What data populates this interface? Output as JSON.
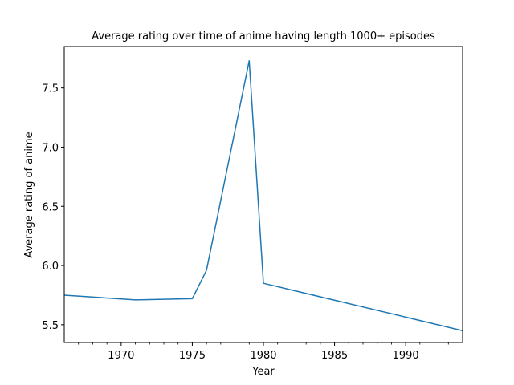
{
  "chart_data": {
    "type": "line",
    "title": "Average rating over time of anime having length 1000+ episodes",
    "xlabel": "Year",
    "ylabel": "Average rating of anime",
    "xlim": [
      1966,
      1994
    ],
    "ylim": [
      5.35,
      7.85
    ],
    "xticks": [
      1970,
      1975,
      1980,
      1985,
      1990
    ],
    "xtick_labels": [
      "1970",
      "1975",
      "1980",
      "1985",
      "1990"
    ],
    "x_minor_ticks": [
      1967,
      1968,
      1969,
      1971,
      1972,
      1973,
      1974,
      1976,
      1977,
      1978,
      1979,
      1981,
      1982,
      1983,
      1984,
      1986,
      1987,
      1988,
      1989,
      1991,
      1992,
      1993
    ],
    "yticks": [
      5.5,
      6.0,
      6.5,
      7.0,
      7.5
    ],
    "ytick_labels": [
      "5.5",
      "6.0",
      "6.5",
      "7.0",
      "7.5"
    ],
    "grid": false,
    "series": [
      {
        "name": "Average rating",
        "color": "#1f77b4",
        "x": [
          1966,
          1971,
          1975,
          1976,
          1979,
          1980,
          1994
        ],
        "y": [
          5.75,
          5.71,
          5.72,
          5.96,
          7.73,
          5.85,
          5.45
        ]
      }
    ]
  }
}
